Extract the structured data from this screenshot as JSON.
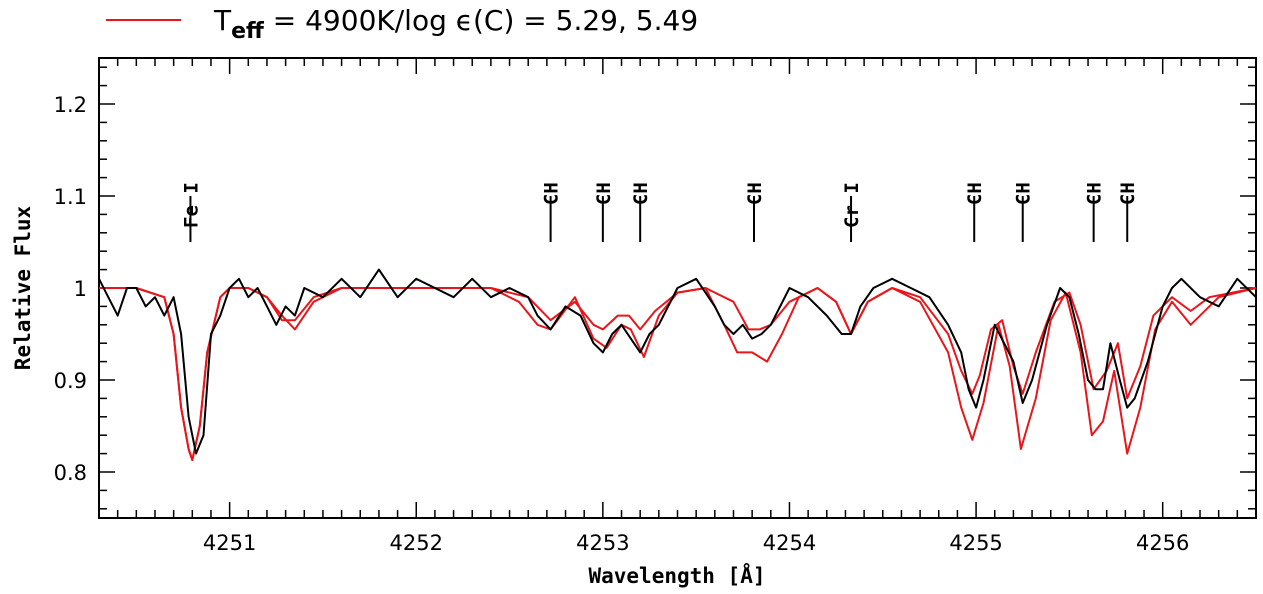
{
  "legend": {
    "t_symbol": "T",
    "t_subscript": "eff",
    "text": " = 4900K/log ϵ(C) = 5.29, 5.49",
    "line_color": "#e8161b"
  },
  "chart_data": {
    "type": "line",
    "title": "",
    "xlabel": "Wavelength [Å]",
    "ylabel": "Relative Flux",
    "xlim": [
      4250.3,
      4256.5
    ],
    "ylim": [
      0.75,
      1.25
    ],
    "x_ticks": [
      4251,
      4252,
      4253,
      4254,
      4255,
      4256
    ],
    "x_tick_labels": [
      "4251",
      "4252",
      "4253",
      "4254",
      "4255",
      "4256"
    ],
    "y_ticks": [
      0.8,
      0.9,
      1,
      1.1,
      1.2
    ],
    "y_tick_labels": [
      "0.8",
      "0.9",
      "1",
      "1.1",
      "1.2"
    ],
    "line_ids": [
      {
        "wavelength": 4250.79,
        "label": "Fe I"
      },
      {
        "wavelength": 4252.72,
        "label": "CH"
      },
      {
        "wavelength": 4253.0,
        "label": "CH"
      },
      {
        "wavelength": 4253.2,
        "label": "CH"
      },
      {
        "wavelength": 4253.81,
        "label": "CH"
      },
      {
        "wavelength": 4254.33,
        "label": "Cr I"
      },
      {
        "wavelength": 4254.99,
        "label": "CH"
      },
      {
        "wavelength": 4255.25,
        "label": "CH"
      },
      {
        "wavelength": 4255.63,
        "label": "CH"
      },
      {
        "wavelength": 4255.81,
        "label": "CH"
      }
    ],
    "series": [
      {
        "color": "#000000",
        "x": [
          4250.3,
          4250.35,
          4250.4,
          4250.45,
          4250.5,
          4250.55,
          4250.6,
          4250.65,
          4250.7,
          4250.74,
          4250.78,
          4250.82,
          4250.86,
          4250.9,
          4250.95,
          4251.0,
          4251.05,
          4251.1,
          4251.15,
          4251.2,
          4251.25,
          4251.3,
          4251.35,
          4251.4,
          4251.5,
          4251.6,
          4251.7,
          4251.8,
          4251.9,
          4252.0,
          4252.1,
          4252.2,
          4252.3,
          4252.4,
          4252.5,
          4252.6,
          4252.65,
          4252.72,
          4252.8,
          4252.88,
          4252.95,
          4253.0,
          4253.05,
          4253.1,
          4253.15,
          4253.2,
          4253.25,
          4253.3,
          4253.4,
          4253.5,
          4253.6,
          4253.65,
          4253.7,
          4253.75,
          4253.8,
          4253.85,
          4253.9,
          4254.0,
          4254.1,
          4254.2,
          4254.28,
          4254.33,
          4254.38,
          4254.45,
          4254.55,
          4254.65,
          4254.75,
          4254.85,
          4254.92,
          4254.96,
          4255.0,
          4255.04,
          4255.1,
          4255.15,
          4255.2,
          4255.25,
          4255.3,
          4255.38,
          4255.45,
          4255.5,
          4255.55,
          4255.6,
          4255.64,
          4255.68,
          4255.72,
          4255.77,
          4255.81,
          4255.85,
          4255.92,
          4256.0,
          4256.05,
          4256.1,
          4256.2,
          4256.3,
          4256.4,
          4256.5
        ],
        "y": [
          1.01,
          0.99,
          0.97,
          1.0,
          1.0,
          0.98,
          0.99,
          0.97,
          0.99,
          0.95,
          0.86,
          0.82,
          0.84,
          0.95,
          0.97,
          1.0,
          1.01,
          0.99,
          1.0,
          0.98,
          0.96,
          0.98,
          0.97,
          1.0,
          0.99,
          1.01,
          0.99,
          1.02,
          0.99,
          1.01,
          1.0,
          0.99,
          1.01,
          0.99,
          1.0,
          0.99,
          0.97,
          0.955,
          0.98,
          0.97,
          0.94,
          0.93,
          0.95,
          0.96,
          0.945,
          0.93,
          0.95,
          0.96,
          1.0,
          1.01,
          0.98,
          0.96,
          0.95,
          0.96,
          0.945,
          0.95,
          0.96,
          1.0,
          0.99,
          0.97,
          0.95,
          0.95,
          0.98,
          1.0,
          1.01,
          1.0,
          0.99,
          0.96,
          0.93,
          0.89,
          0.87,
          0.9,
          0.96,
          0.94,
          0.92,
          0.875,
          0.9,
          0.96,
          1.0,
          0.99,
          0.95,
          0.9,
          0.89,
          0.89,
          0.94,
          0.9,
          0.87,
          0.88,
          0.92,
          0.98,
          1.0,
          1.01,
          0.99,
          0.98,
          1.01,
          0.99
        ]
      },
      {
        "color": "#e8161b",
        "x": [
          4250.3,
          4250.5,
          4250.65,
          4250.7,
          4250.74,
          4250.78,
          4250.8,
          4250.84,
          4250.88,
          4250.95,
          4251.0,
          4251.1,
          4251.2,
          4251.28,
          4251.35,
          4251.45,
          4251.6,
          4252.0,
          4252.4,
          4252.6,
          4252.72,
          4252.85,
          4252.95,
          4253.0,
          4253.08,
          4253.14,
          4253.2,
          4253.28,
          4253.4,
          4253.55,
          4253.7,
          4253.78,
          4253.84,
          4253.9,
          4254.0,
          4254.15,
          4254.25,
          4254.33,
          4254.42,
          4254.55,
          4254.7,
          4254.85,
          4254.92,
          4254.98,
          4255.02,
          4255.08,
          4255.14,
          4255.2,
          4255.25,
          4255.32,
          4255.42,
          4255.5,
          4255.56,
          4255.63,
          4255.7,
          4255.76,
          4255.81,
          4255.88,
          4255.95,
          4256.05,
          4256.15,
          4256.25,
          4256.5
        ],
        "y": [
          1.0,
          1.0,
          0.99,
          0.95,
          0.87,
          0.825,
          0.813,
          0.85,
          0.93,
          0.99,
          1.0,
          1.0,
          0.99,
          0.965,
          0.965,
          0.99,
          1.0,
          1.0,
          1.0,
          0.99,
          0.965,
          0.985,
          0.96,
          0.955,
          0.97,
          0.97,
          0.955,
          0.975,
          0.995,
          1.0,
          0.985,
          0.955,
          0.955,
          0.96,
          0.985,
          1.0,
          0.985,
          0.95,
          0.985,
          1.0,
          0.99,
          0.95,
          0.91,
          0.885,
          0.905,
          0.955,
          0.965,
          0.915,
          0.885,
          0.93,
          0.985,
          0.995,
          0.96,
          0.89,
          0.91,
          0.94,
          0.88,
          0.915,
          0.97,
          0.99,
          0.975,
          0.99,
          1.0
        ]
      },
      {
        "color": "#e8161b",
        "x": [
          4250.3,
          4250.5,
          4250.65,
          4250.7,
          4250.74,
          4250.78,
          4250.8,
          4250.84,
          4250.88,
          4250.95,
          4251.0,
          4251.1,
          4251.2,
          4251.28,
          4251.35,
          4251.45,
          4251.6,
          4252.0,
          4252.4,
          4252.55,
          4252.65,
          4252.72,
          4252.85,
          4252.95,
          4253.02,
          4253.1,
          4253.15,
          4253.22,
          4253.3,
          4253.4,
          4253.55,
          4253.65,
          4253.72,
          4253.8,
          4253.88,
          4253.96,
          4254.05,
          4254.15,
          4254.25,
          4254.33,
          4254.42,
          4254.55,
          4254.7,
          4254.85,
          4254.92,
          4254.98,
          4255.04,
          4255.12,
          4255.18,
          4255.24,
          4255.32,
          4255.4,
          4255.48,
          4255.56,
          4255.62,
          4255.68,
          4255.74,
          4255.81,
          4255.88,
          4255.96,
          4256.05,
          4256.15,
          4256.3,
          4256.5
        ],
        "y": [
          1.0,
          1.0,
          0.99,
          0.95,
          0.87,
          0.825,
          0.813,
          0.85,
          0.93,
          0.99,
          1.0,
          1.0,
          0.99,
          0.97,
          0.955,
          0.985,
          1.0,
          1.0,
          1.0,
          0.985,
          0.96,
          0.955,
          0.99,
          0.945,
          0.935,
          0.96,
          0.955,
          0.925,
          0.97,
          0.995,
          1.0,
          0.96,
          0.93,
          0.93,
          0.92,
          0.95,
          0.99,
          1.0,
          0.985,
          0.95,
          0.985,
          1.0,
          0.985,
          0.93,
          0.87,
          0.835,
          0.875,
          0.96,
          0.915,
          0.825,
          0.88,
          0.965,
          0.995,
          0.93,
          0.84,
          0.855,
          0.91,
          0.82,
          0.87,
          0.955,
          0.985,
          0.96,
          0.99,
          1.0
        ]
      }
    ]
  }
}
